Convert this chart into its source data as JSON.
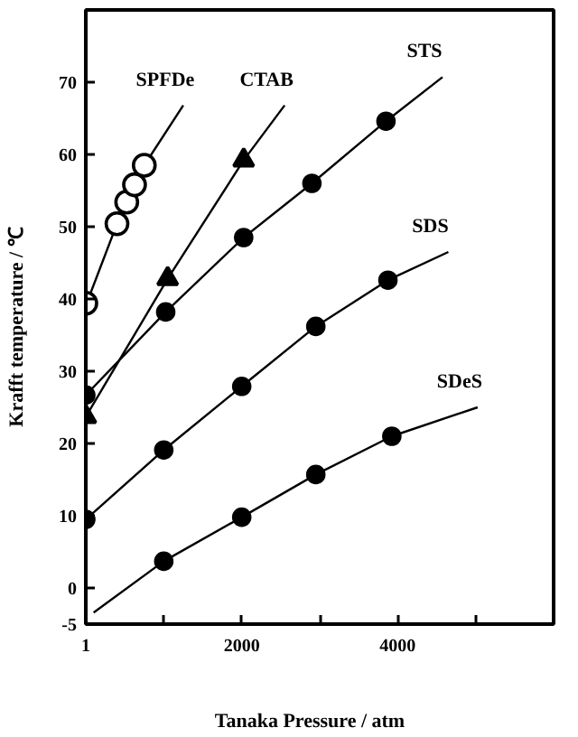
{
  "chart_data": {
    "type": "scatter",
    "xlabel": "Tanaka Pressure   /   atm",
    "ylabel": "Krafft temperature   /   ℃",
    "xlim": [
      0,
      6000
    ],
    "ylim": [
      -5,
      80
    ],
    "xticks": [
      1,
      {
        "value": 1000,
        "label": null
      },
      2000,
      {
        "value": 3000,
        "label": null
      },
      4000,
      {
        "value": 5000,
        "label": null
      }
    ],
    "yticks": [
      -5,
      0,
      10,
      20,
      30,
      40,
      50,
      60,
      70
    ],
    "grid": false,
    "series": [
      {
        "type": "line",
        "name": "SPFDe",
        "color": "#000000",
        "marker": "none",
        "x": [
          50,
          400,
          525,
          625,
          750,
          1250
        ],
        "values": [
          40.5,
          50.4,
          53.4,
          55.8,
          58.5,
          66.8
        ]
      },
      {
        "color": "#ffffff",
        "marker": "circle",
        "x": [
          0,
          400,
          525,
          625,
          750
        ],
        "values": [
          39.4,
          50.4,
          53.4,
          55.8,
          58.5
        ]
      },
      {
        "type": "line",
        "name": "CTAB",
        "color": "#000000",
        "marker": "none",
        "x": [
          0,
          1050,
          2025,
          2550
        ],
        "values": [
          23.7,
          42.8,
          59.2,
          66.8
        ]
      },
      {
        "color": "#000000",
        "marker": "triangle",
        "x": [
          0,
          1050,
          2025
        ],
        "values": [
          23.7,
          42.8,
          59.2
        ]
      },
      {
        "type": "line",
        "name": "STS",
        "color": "#000000",
        "marker": "none",
        "x": [
          0,
          1025,
          2025,
          2900,
          3850,
          4575
        ],
        "values": [
          26.7,
          38.2,
          48.5,
          56,
          64.6,
          70.7
        ]
      },
      {
        "color": "#000000",
        "marker": "circle",
        "x": [
          0,
          1025,
          2025,
          2900,
          3850
        ],
        "values": [
          26.7,
          38.2,
          48.5,
          56,
          64.6
        ]
      },
      {
        "type": "line",
        "name": "SDS",
        "color": "#000000",
        "marker": "none",
        "x": [
          0,
          1000,
          2000,
          2950,
          3875,
          4650
        ],
        "values": [
          9.5,
          19.1,
          27.9,
          36.2,
          42.6,
          46.5
        ]
      },
      {
        "color": "#000000",
        "marker": "circle",
        "x": [
          0,
          1000,
          2000,
          2950,
          3875
        ],
        "values": [
          9.5,
          19.1,
          27.9,
          36.2,
          42.6
        ]
      },
      {
        "type": "line",
        "name": "SDeS",
        "color": "#000000",
        "marker": "none",
        "x": [
          100,
          1000,
          2000,
          2950,
          3925,
          5025
        ],
        "values": [
          -3.4,
          3.7,
          9.8,
          15.7,
          21,
          25
        ]
      },
      {
        "color": "#000000",
        "marker": "circle",
        "x": [
          1000,
          2000,
          2950,
          3925
        ],
        "values": [
          3.7,
          9.8,
          15.7,
          21
        ]
      }
    ]
  }
}
